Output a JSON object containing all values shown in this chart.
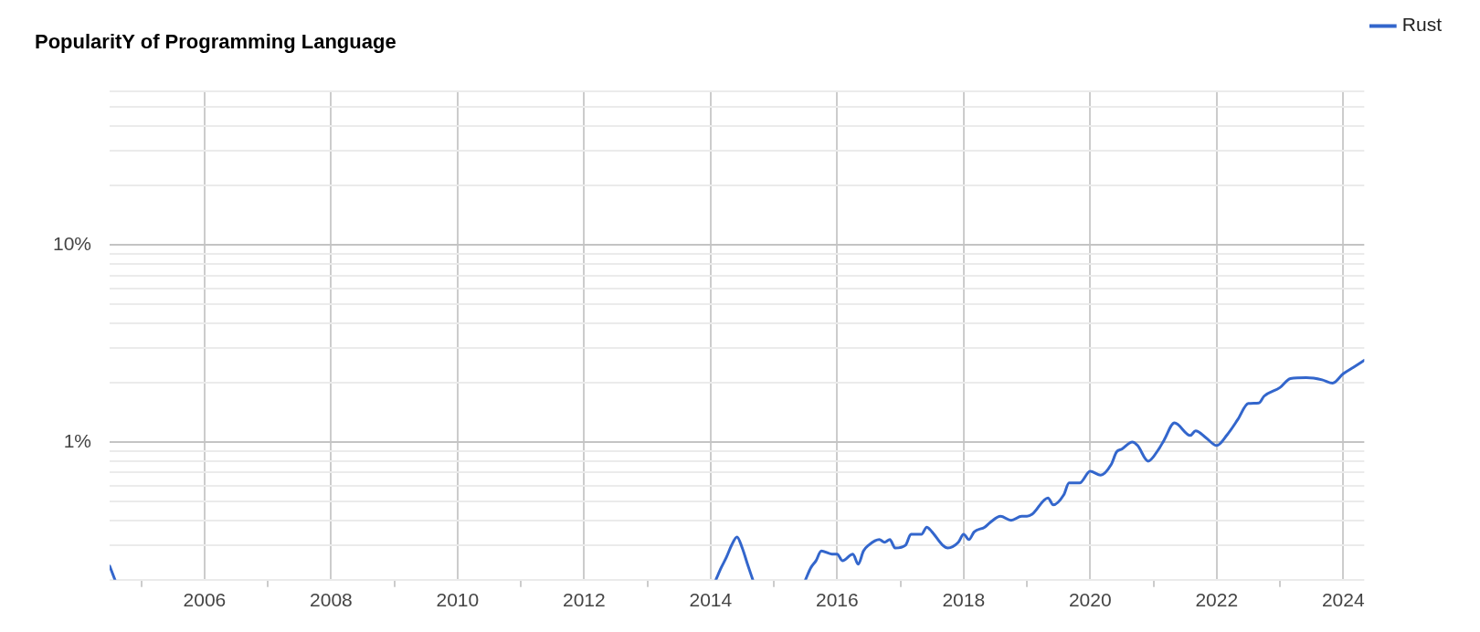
{
  "chart_data": {
    "type": "line",
    "title": "PopularitY of Programming Language",
    "log": "y",
    "grid": true,
    "legend": "top right",
    "marker": "none",
    "line_style": "solid",
    "xlim": [
      "2004-07",
      "2024-05"
    ],
    "xticks": [
      {
        "value": "2005",
        "label": null
      },
      "2006",
      {
        "value": "2007",
        "label": null
      },
      "2008",
      {
        "value": "2009",
        "label": null
      },
      "2010",
      {
        "value": "2011",
        "label": null
      },
      "2012",
      {
        "value": "2013",
        "label": null
      },
      "2014",
      {
        "value": "2015",
        "label": null
      },
      "2016",
      {
        "value": "2017",
        "label": null
      },
      "2018",
      {
        "value": "2019",
        "label": null
      },
      "2020",
      {
        "value": "2021",
        "label": null
      },
      "2022",
      {
        "value": "2023",
        "label": null
      },
      "2024"
    ],
    "ylim": [
      0.2,
      60
    ],
    "yticks": [
      {
        "value": 0.2,
        "label": null
      },
      {
        "value": 0.3,
        "label": null
      },
      {
        "value": 0.4,
        "label": null
      },
      {
        "value": 0.5,
        "label": null
      },
      {
        "value": 0.6,
        "label": null
      },
      {
        "value": 0.7,
        "label": null
      },
      {
        "value": 0.8,
        "label": null
      },
      {
        "value": 0.9,
        "label": null
      },
      {
        "value": 1,
        "label": "1%"
      },
      {
        "value": 2,
        "label": null
      },
      {
        "value": 3,
        "label": null
      },
      {
        "value": 4,
        "label": null
      },
      {
        "value": 5,
        "label": null
      },
      {
        "value": 6,
        "label": null
      },
      {
        "value": 7,
        "label": null
      },
      {
        "value": 8,
        "label": null
      },
      {
        "value": 9,
        "label": null
      },
      {
        "value": 10,
        "label": "10%"
      },
      {
        "value": 20,
        "label": null
      },
      {
        "value": 30,
        "label": null
      },
      {
        "value": 40,
        "label": null
      },
      {
        "value": 50,
        "label": null
      },
      {
        "value": 60,
        "label": null
      }
    ],
    "series": [
      {
        "name": "Rust",
        "color": "#3366cc",
        "x": [
          "2004-07",
          "2004-08",
          "2010-01",
          "2014-02",
          "2014-03",
          "2014-04",
          "2014-05",
          "2014-06",
          "2014-07",
          "2014-08",
          "2014-09",
          "2015-01",
          "2015-07",
          "2015-08",
          "2015-09",
          "2015-10",
          "2015-12",
          "2016-01",
          "2016-02",
          "2016-04",
          "2016-05",
          "2016-06",
          "2016-07",
          "2016-09",
          "2016-10",
          "2016-11",
          "2016-12",
          "2017-02",
          "2017-03",
          "2017-05",
          "2017-06",
          "2017-07",
          "2017-09",
          "2017-10",
          "2017-12",
          "2018-01",
          "2018-02",
          "2018-03",
          "2018-05",
          "2018-06",
          "2018-08",
          "2018-10",
          "2018-12",
          "2019-01",
          "2019-02",
          "2019-05",
          "2019-06",
          "2019-08",
          "2019-09",
          "2019-11",
          "2020-01",
          "2020-03",
          "2020-05",
          "2020-06",
          "2020-07",
          "2020-09",
          "2020-10",
          "2020-12",
          "2021-02",
          "2021-03",
          "2021-05",
          "2021-08",
          "2021-09",
          "2021-11",
          "2022-01",
          "2022-03",
          "2022-05",
          "2022-07",
          "2022-09",
          "2022-10",
          "2023-01",
          "2023-03",
          "2023-06",
          "2023-09",
          "2023-11",
          "2024-01",
          "2024-03",
          "2024-05"
        ],
        "values": [
          0.235,
          0.2,
          null,
          0.2,
          0.23,
          0.26,
          0.3,
          0.33,
          0.29,
          0.24,
          0.2,
          null,
          0.2,
          0.23,
          0.25,
          0.28,
          0.27,
          0.27,
          0.25,
          0.27,
          0.24,
          0.28,
          0.3,
          0.32,
          0.31,
          0.32,
          0.29,
          0.3,
          0.34,
          0.34,
          0.37,
          0.35,
          0.3,
          0.29,
          0.31,
          0.34,
          0.32,
          0.35,
          0.37,
          0.39,
          0.42,
          0.4,
          0.42,
          0.42,
          0.43,
          0.52,
          0.48,
          0.54,
          0.62,
          0.62,
          0.71,
          0.68,
          0.77,
          0.89,
          0.92,
          1.0,
          0.96,
          0.8,
          0.92,
          1.02,
          1.25,
          1.08,
          1.14,
          1.05,
          0.96,
          1.09,
          1.3,
          1.57,
          1.58,
          1.71,
          1.89,
          2.1,
          2.12,
          2.07,
          1.99,
          2.22,
          2.4,
          2.6
        ]
      }
    ]
  }
}
